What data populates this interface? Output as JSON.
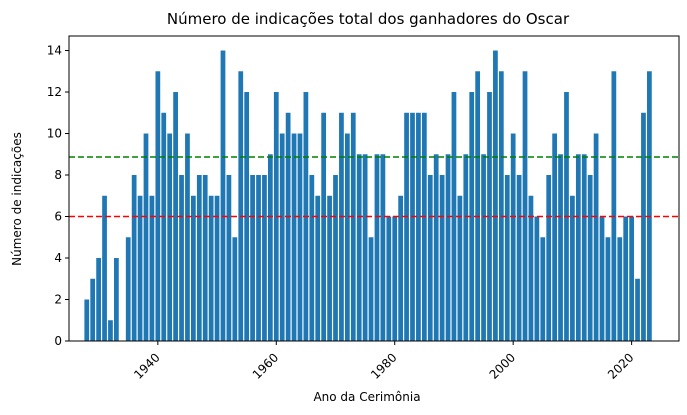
{
  "chart_data": {
    "type": "bar",
    "title": "Número de indicações total dos ganhadores do Oscar",
    "xlabel": "Ano da Cerimônia",
    "ylabel": "Número de indicações",
    "xlim": [
      1925,
      2028
    ],
    "ylim": [
      0,
      14.7
    ],
    "x_ticks": [
      1940,
      1960,
      1980,
      2000,
      2020
    ],
    "y_ticks": [
      0,
      2,
      4,
      6,
      8,
      10,
      12,
      14
    ],
    "x": [
      1928,
      1929,
      1930,
      1931,
      1932,
      1933,
      1934,
      1935,
      1936,
      1937,
      1938,
      1939,
      1940,
      1941,
      1942,
      1943,
      1944,
      1945,
      1946,
      1947,
      1948,
      1949,
      1950,
      1951,
      1952,
      1953,
      1954,
      1955,
      1956,
      1957,
      1958,
      1959,
      1960,
      1961,
      1962,
      1963,
      1964,
      1965,
      1966,
      1967,
      1968,
      1969,
      1970,
      1971,
      1972,
      1973,
      1974,
      1975,
      1976,
      1977,
      1978,
      1979,
      1980,
      1981,
      1982,
      1983,
      1984,
      1985,
      1986,
      1987,
      1988,
      1989,
      1990,
      1991,
      1992,
      1993,
      1994,
      1995,
      1996,
      1997,
      1998,
      1999,
      2000,
      2001,
      2002,
      2003,
      2004,
      2005,
      2006,
      2007,
      2008,
      2009,
      2010,
      2011,
      2012,
      2013,
      2014,
      2015,
      2016,
      2017,
      2018,
      2019,
      2020,
      2021,
      2022,
      2023,
      2024
    ],
    "values": [
      2,
      3,
      4,
      7,
      1,
      4,
      0,
      5,
      8,
      7,
      10,
      7,
      13,
      11,
      10,
      12,
      8,
      10,
      7,
      8,
      8,
      7,
      7,
      14,
      8,
      5,
      13,
      12,
      8,
      8,
      8,
      9,
      12,
      10,
      11,
      10,
      10,
      12,
      8,
      7,
      11,
      7,
      8,
      11,
      10,
      11,
      9,
      9,
      5,
      9,
      9,
      6,
      6,
      7,
      11,
      11,
      11,
      11,
      8,
      9,
      8,
      9,
      12,
      7,
      9,
      12,
      13,
      9,
      12,
      14,
      13,
      8,
      10,
      8,
      13,
      7,
      6,
      5,
      8,
      10,
      9,
      12,
      7,
      9,
      9,
      8,
      10,
      6,
      5,
      13,
      5,
      6,
      6,
      3,
      11,
      13,
      0
    ],
    "hlines": [
      {
        "y": 8.87,
        "color": "#008000",
        "style": "dashed"
      },
      {
        "y": 6.0,
        "color": "#ff0000",
        "style": "dashed"
      }
    ],
    "bar_color": "#1f77b4",
    "grid": false
  }
}
